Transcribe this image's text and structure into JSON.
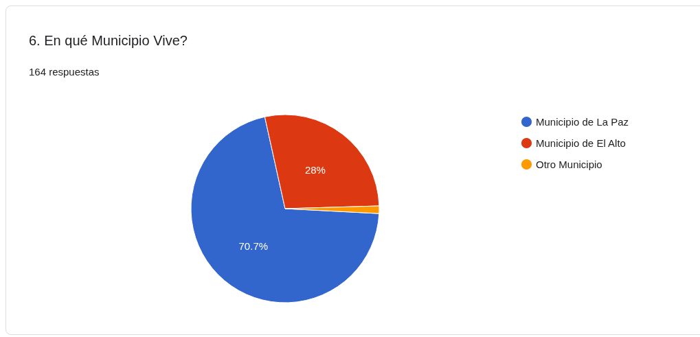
{
  "chart_data": {
    "type": "pie",
    "title": "6. En qué Municipio Vive?",
    "subtitle": "164 respuestas",
    "categories": [
      "Municipio de La Paz",
      "Municipio de El Alto",
      "Otro Municipio"
    ],
    "values": [
      70.7,
      28,
      1.3
    ],
    "colors": [
      "#3366cc",
      "#dc3912",
      "#ff9900"
    ],
    "value_labels": [
      "70.7%",
      "28%",
      null
    ],
    "legend": "right"
  }
}
